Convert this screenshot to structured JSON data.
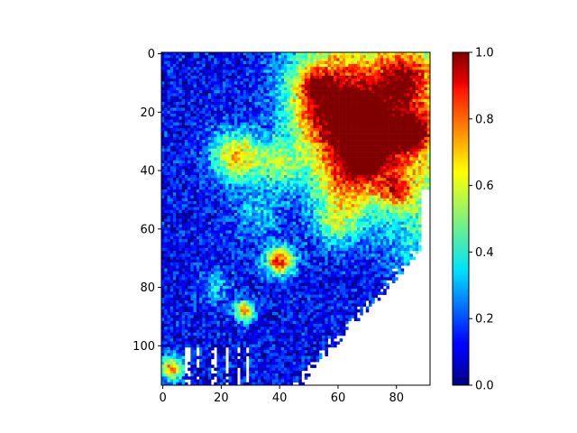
{
  "chart_data": {
    "type": "heatmap",
    "title": "",
    "xlabel": "",
    "ylabel": "",
    "grid": false,
    "x_extent": [
      -0.5,
      91.5
    ],
    "y_extent": [
      -0.5,
      113.5
    ],
    "y_inverted": true,
    "x_ticks": [
      0,
      20,
      40,
      60,
      80
    ],
    "x_tick_labels": [
      "0",
      "20",
      "40",
      "60",
      "80"
    ],
    "y_ticks": [
      0,
      20,
      40,
      60,
      80,
      100
    ],
    "y_tick_labels": [
      "0",
      "20",
      "40",
      "60",
      "80",
      "100"
    ],
    "colormap": "jet",
    "missing_values": "white (NaN) in the lower-right triangular region",
    "colorbar": {
      "range": [
        0,
        1
      ],
      "ticks": [
        0.0,
        0.2,
        0.4,
        0.6,
        0.8,
        1.0
      ],
      "tick_labels": [
        "0.0",
        "0.2",
        "0.4",
        "0.6",
        "0.8",
        "1.0"
      ],
      "placement": "right"
    },
    "hotspots": [
      {
        "x": 85,
        "y": 27,
        "value": 0.95
      },
      {
        "x": 70,
        "y": 35,
        "value": 0.95
      },
      {
        "x": 80,
        "y": 47,
        "value": 0.9
      },
      {
        "x": 52,
        "y": 10,
        "value": 0.85
      },
      {
        "x": 40,
        "y": 71,
        "value": 0.95
      },
      {
        "x": 28,
        "y": 88,
        "value": 0.85
      },
      {
        "x": 3,
        "y": 108,
        "value": 0.7
      },
      {
        "x": 24,
        "y": 32,
        "value": 0.8
      },
      {
        "x": 62,
        "y": 57,
        "value": 0.6
      }
    ]
  }
}
